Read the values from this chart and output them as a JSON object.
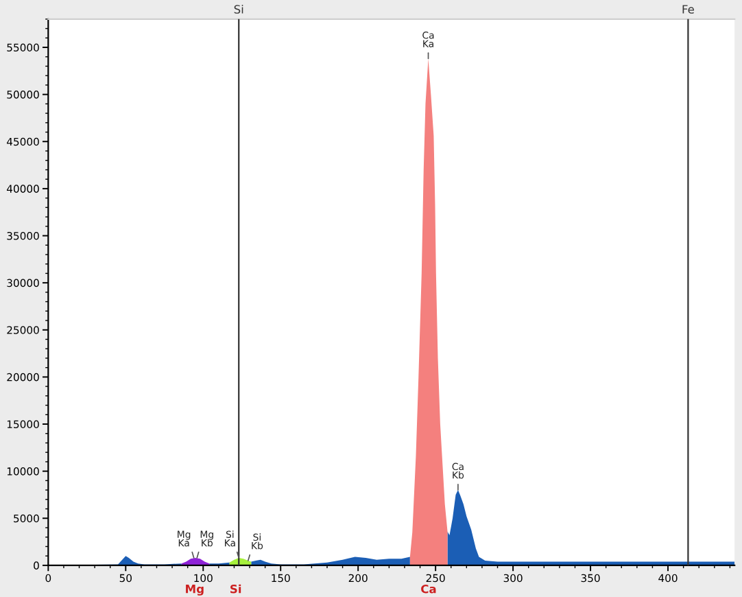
{
  "chart_data": {
    "type": "area",
    "series": [
      {
        "color": "#1b5eb5",
        "x": [
          0,
          45,
          50,
          52,
          55,
          58,
          62,
          75,
          86,
          95,
          104,
          110,
          117,
          124,
          131,
          134,
          137,
          140,
          144,
          150,
          165,
          180,
          190,
          198,
          205,
          212,
          220,
          228,
          233.5,
          245,
          257.7,
          259,
          261,
          263,
          264.5,
          266,
          268,
          270,
          273,
          276,
          278,
          282,
          290,
          443
        ],
        "values": [
          0,
          100,
          1000,
          800,
          400,
          200,
          100,
          100,
          200,
          null,
          200,
          200,
          300,
          null,
          400,
          500,
          600,
          400,
          200,
          100,
          100,
          300,
          600,
          900,
          800,
          600,
          700,
          700,
          900,
          null,
          3600,
          3200,
          5000,
          7500,
          8000,
          7400,
          6500,
          5200,
          3800,
          1800,
          900,
          500,
          400,
          400
        ]
      },
      {
        "color": "#8f22d8",
        "x": [
          86,
          89,
          92,
          95,
          98,
          101,
          104
        ],
        "values": [
          200,
          400,
          700,
          800,
          700,
          400,
          200
        ]
      },
      {
        "color": "#a6f03c",
        "x": [
          117,
          120,
          123,
          126,
          129,
          131
        ],
        "values": [
          300,
          600,
          800,
          700,
          500,
          400
        ]
      },
      {
        "color": "#f4807e",
        "x": [
          233.5,
          235,
          237.3,
          239,
          241,
          242.3,
          243.5,
          245.3,
          247,
          248.8,
          249.7,
          250.3,
          251.5,
          253,
          254.2,
          256,
          257.7
        ],
        "values": [
          900,
          3500,
          11600,
          20000,
          31000,
          42000,
          49000,
          53800,
          50000,
          45600,
          38300,
          31000,
          22000,
          15000,
          11600,
          6500,
          3600
        ]
      }
    ],
    "xlim": [
      0,
      443
    ],
    "ylim": [
      0,
      58000
    ],
    "xticks": [
      0,
      50,
      100,
      150,
      200,
      250,
      300,
      350,
      400
    ],
    "yticks": [
      0,
      5000,
      10000,
      15000,
      20000,
      25000,
      30000,
      35000,
      40000,
      45000,
      50000,
      55000
    ],
    "ref_lines": [
      {
        "axis": "x",
        "value": 123,
        "label": "Si",
        "color": "#333333"
      },
      {
        "axis": "x",
        "value": 413,
        "label": "Fe",
        "color": "#333333"
      }
    ],
    "annotations": [
      {
        "text": "Mg\nKa",
        "x": 94,
        "y": 800
      },
      {
        "text": "Mg\nKb",
        "x": 96,
        "y": 800
      },
      {
        "text": "Si\nKa",
        "x": 123,
        "y": 800
      },
      {
        "text": "Si\nKb",
        "x": 129,
        "y": 500
      },
      {
        "text": "Ca\nKa",
        "x": 245.3,
        "y": 53800
      },
      {
        "text": "Ca\nKb",
        "x": 264.5,
        "y": 8000
      },
      {
        "text": "Mg",
        "x": 94.5,
        "y": 0
      },
      {
        "text": "Si",
        "x": 121,
        "y": 0
      },
      {
        "text": "Ca",
        "x": 245.5,
        "y": 0
      }
    ]
  }
}
